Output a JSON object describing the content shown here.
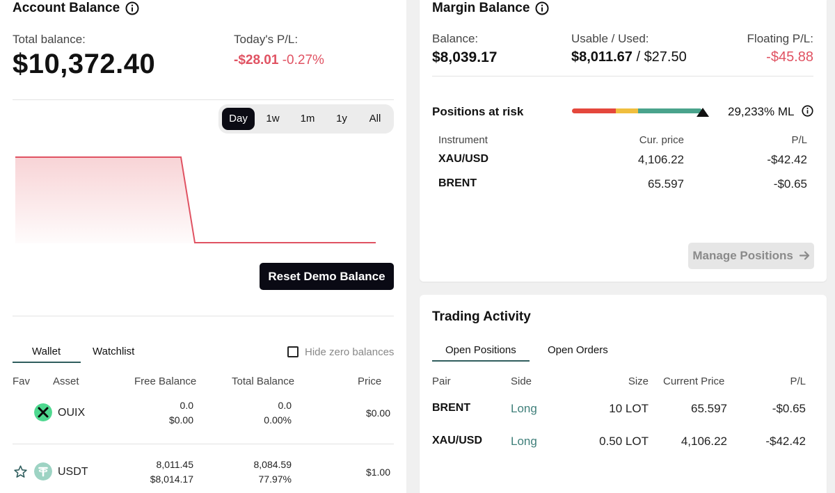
{
  "account": {
    "title": "Account Balance",
    "total_label": "Total balance:",
    "total_value": "$10,372.40",
    "pl_label": "Today's P/L:",
    "pl_value": "-$28.01",
    "pl_percent": "-0.27%",
    "ranges": [
      "Day",
      "1w",
      "1m",
      "1y",
      "All"
    ],
    "active_range": "Day",
    "reset_label": "Reset Demo Balance",
    "tabs": [
      "Wallet",
      "Watchlist"
    ],
    "hide_zero_label": "Hide zero balances",
    "columns": [
      "Fav",
      "Asset",
      "Free Balance",
      "Total Balance",
      "Price"
    ],
    "rows": [
      {
        "asset": "OUIX",
        "free": "0.0",
        "free_usd": "$0.00",
        "total": "0.0",
        "total_pct": "0.00%",
        "price": "$0.00",
        "icon": "ouix-icon"
      },
      {
        "asset": "USDT",
        "free": "8,011.45",
        "free_usd": "$8,014.17",
        "total": "8,084.59",
        "total_pct": "77.97%",
        "price": "$1.00",
        "icon": "tether-icon"
      }
    ]
  },
  "margin": {
    "title": "Margin Balance",
    "balance_label": "Balance:",
    "balance_value": "$8,039.17",
    "usable_label": "Usable / Used:",
    "usable_value": "$8,011.67",
    "used_value": "$27.50",
    "usable_separator": "/",
    "floating_label": "Floating P/L:",
    "floating_value": "-$45.88",
    "risk_label": "Positions at risk",
    "ml_value": "29,233% ML",
    "columns": [
      "Instrument",
      "Cur. price",
      "P/L"
    ],
    "rows": [
      {
        "instrument": "XAU/USD",
        "price": "4,106.22",
        "pl": "-$42.42"
      },
      {
        "instrument": "BRENT",
        "price": "65.597",
        "pl": "-$0.65"
      }
    ],
    "manage_label": "Manage Positions"
  },
  "trading": {
    "title": "Trading Activity",
    "tabs": [
      "Open Positions",
      "Open Orders"
    ],
    "columns": [
      "Pair",
      "Side",
      "Size",
      "Current Price",
      "P/L"
    ],
    "rows": [
      {
        "pair": "BRENT",
        "side": "Long",
        "size": "10 LOT",
        "price": "65.597",
        "pl": "-$0.65"
      },
      {
        "pair": "XAU/USD",
        "side": "Long",
        "size": "0.50 LOT",
        "price": "4,106.22",
        "pl": "-$42.42"
      }
    ]
  },
  "colors": {
    "negative": "#e05262",
    "accent_teal": "#2f5d5d",
    "risk_red": "#e4473c",
    "risk_yellow": "#f0be3e",
    "risk_green": "#4aa38c"
  }
}
